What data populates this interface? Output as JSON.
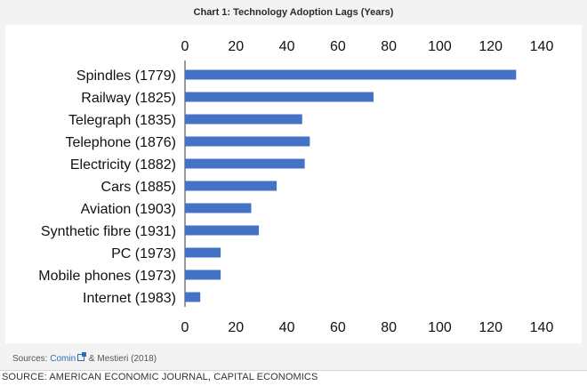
{
  "figure": {
    "title": "Chart 1: Technology Adoption Lags (Years)",
    "sources_prefix": "Sources: ",
    "sources_link": "Comin",
    "sources_suffix": " & Mestieri (2018)",
    "caption": "SOURCE: AMERICAN ECONOMIC JOURNAL, CAPITAL ECONOMICS"
  },
  "colors": {
    "bar": "#4472c4",
    "axis": "#333333"
  },
  "chart_data": {
    "type": "bar",
    "orientation": "horizontal",
    "title": "",
    "xlabel": "",
    "ylabel": "",
    "xlim": [
      0,
      140
    ],
    "xticks": [
      "0",
      "20",
      "40",
      "60",
      "80",
      "100",
      "120",
      "140"
    ],
    "tick_positions": "top-and-bottom",
    "grid": false,
    "categories": [
      "Spindles (1779)",
      "Railway (1825)",
      "Telegraph (1835)",
      "Telephone (1876)",
      "Electricity (1882)",
      "Cars (1885)",
      "Aviation (1903)",
      "Synthetic fibre (1931)",
      "PC (1973)",
      "Mobile phones (1973)",
      "Internet (1983)"
    ],
    "values": [
      130,
      74,
      46,
      49,
      47,
      36,
      26,
      29,
      14,
      14,
      6
    ]
  }
}
